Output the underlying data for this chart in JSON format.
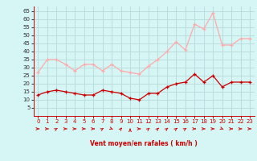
{
  "hours": [
    0,
    1,
    2,
    3,
    4,
    5,
    6,
    7,
    8,
    9,
    10,
    11,
    12,
    13,
    14,
    15,
    16,
    17,
    18,
    19,
    20,
    21,
    22,
    23
  ],
  "vent_moyen": [
    13,
    15,
    16,
    15,
    14,
    13,
    13,
    16,
    15,
    14,
    11,
    10,
    14,
    14,
    18,
    20,
    21,
    26,
    21,
    25,
    18,
    21,
    21,
    21
  ],
  "rafales": [
    27,
    35,
    35,
    32,
    28,
    32,
    32,
    28,
    32,
    28,
    27,
    26,
    31,
    35,
    40,
    46,
    41,
    57,
    54,
    64,
    44,
    44,
    48,
    48
  ],
  "color_moyen": "#cc0000",
  "color_rafales": "#ffaaaa",
  "bg_color": "#d6f5f5",
  "grid_color": "#bbdddd",
  "xlabel": "Vent moyen/en rafales ( km/h )",
  "ylim": [
    0,
    68
  ],
  "yticks": [
    5,
    10,
    15,
    20,
    25,
    30,
    35,
    40,
    45,
    50,
    55,
    60,
    65
  ],
  "xlim": [
    -0.5,
    23.5
  ],
  "xticks": [
    0,
    1,
    2,
    3,
    4,
    5,
    6,
    7,
    8,
    9,
    10,
    11,
    12,
    13,
    14,
    15,
    16,
    17,
    18,
    19,
    20,
    21,
    22,
    23
  ]
}
